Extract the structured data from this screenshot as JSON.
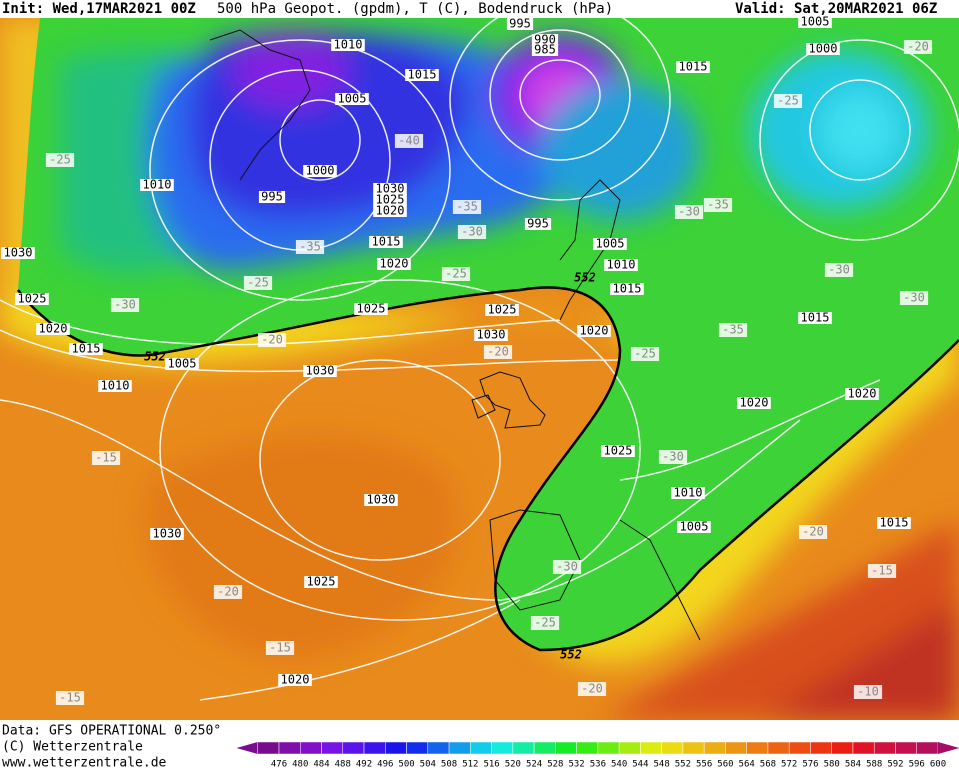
{
  "header": {
    "init": "Init: Wed,17MAR2021 00Z",
    "title": "500 hPa Geopot. (gpdm), T (C), Bodendruck (hPa)",
    "valid": "Valid: Sat,20MAR2021 06Z"
  },
  "map": {
    "pressure_labels": [
      "995",
      "990",
      "985",
      "1010",
      "1015",
      "1015",
      "1005",
      "1000",
      "1005",
      "1000",
      "1010",
      "995",
      "1030",
      "1025",
      "1020",
      "995",
      "1015",
      "1005",
      "1020",
      "1010",
      "1015",
      "1030",
      "1025",
      "1020",
      "1015",
      "1005",
      "1025",
      "1025",
      "1020",
      "1030",
      "1015",
      "1030",
      "1010",
      "1020",
      "1020",
      "1025",
      "1010",
      "1030",
      "1005",
      "1015",
      "1030",
      "1025",
      "1020"
    ],
    "temperature_labels": [
      "-20",
      "-25",
      "-25",
      "-40",
      "-35",
      "-30",
      "-30",
      "-35",
      "-30",
      "-35",
      "-25",
      "-25",
      "-30",
      "-30",
      "-20",
      "-20",
      "-35",
      "-25",
      "-30",
      "-15",
      "-20",
      "-30",
      "-20",
      "-15",
      "-15",
      "-25",
      "-20",
      "-15",
      "-10"
    ],
    "height_labels": [
      "552",
      "552",
      "552"
    ]
  },
  "footer": {
    "data": "Data: GFS OPERATIONAL 0.250°",
    "copyright": "(C) Wetterzentrale",
    "url": "www.wetterzentrale.de"
  },
  "colorbar": {
    "values": [
      476,
      480,
      484,
      488,
      492,
      496,
      500,
      504,
      508,
      512,
      516,
      520,
      524,
      528,
      532,
      536,
      540,
      544,
      548,
      552,
      556,
      560,
      564,
      568,
      572,
      576,
      580,
      584,
      588,
      592,
      596,
      600
    ]
  }
}
